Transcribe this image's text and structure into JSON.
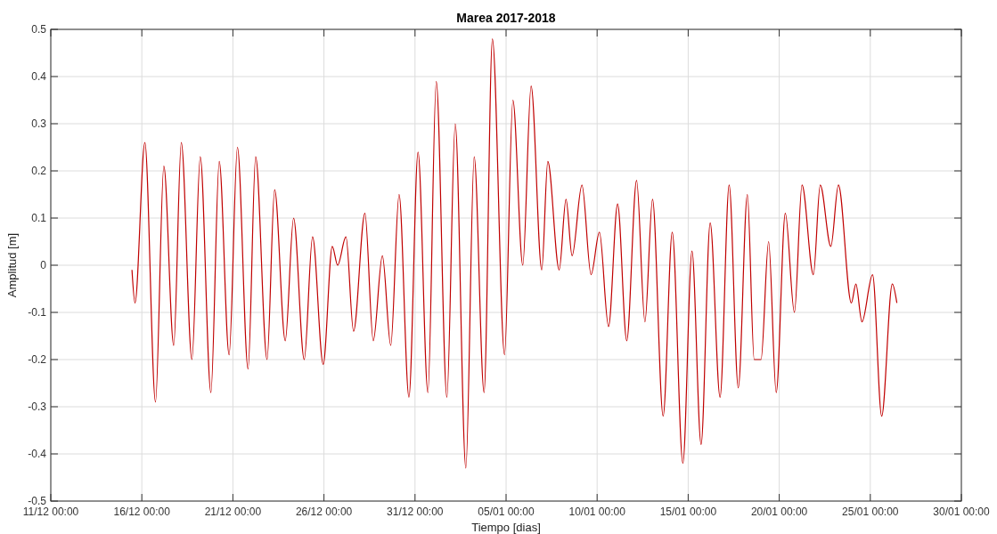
{
  "chart_data": {
    "type": "line",
    "title": "Marea 2017-2018",
    "xlabel": "Tiempo [dias]",
    "ylabel": "Amplitud [m]",
    "x": [
      "2017-12-15T11:00",
      "2017-12-15T15:00",
      "2017-12-16T04:00",
      "2017-12-16T18:00",
      "2017-12-17T05:00",
      "2017-12-17T18:00",
      "2017-12-18T04:00",
      "2017-12-18T18:00",
      "2017-12-19T05:00",
      "2017-12-19T19:00",
      "2017-12-20T06:00",
      "2017-12-20T19:00",
      "2017-12-21T06:00",
      "2017-12-21T20:00",
      "2017-12-22T06:00",
      "2017-12-22T21:00",
      "2017-12-23T07:00",
      "2017-12-23T21:00",
      "2017-12-24T08:00",
      "2017-12-24T22:00",
      "2017-12-25T09:00",
      "2017-12-25T23:00",
      "2017-12-26T11:00",
      "2017-12-26T18:00",
      "2017-12-27T05:00",
      "2017-12-27T15:00",
      "2017-12-28T06:00",
      "2017-12-28T17:00",
      "2017-12-29T05:00",
      "2017-12-29T16:00",
      "2017-12-30T03:00",
      "2017-12-30T16:00",
      "2017-12-31T04:00",
      "2017-12-31T17:00",
      "2018-01-01T04:00",
      "2018-01-01T18:00",
      "2018-01-02T05:00",
      "2018-01-02T19:00",
      "2018-01-03T06:00",
      "2018-01-03T19:00",
      "2018-01-04T06:00",
      "2018-01-04T22:00",
      "2018-01-05T09:00",
      "2018-01-05T22:00",
      "2018-01-06T09:00",
      "2018-01-06T23:00",
      "2018-01-07T07:00",
      "2018-01-07T22:00",
      "2018-01-08T07:00",
      "2018-01-08T15:00",
      "2018-01-09T04:00",
      "2018-01-09T16:00",
      "2018-01-10T03:00",
      "2018-01-10T15:00",
      "2018-01-11T03:00",
      "2018-01-11T15:00",
      "2018-01-12T04:00",
      "2018-01-12T15:00",
      "2018-01-13T01:00",
      "2018-01-13T15:00",
      "2018-01-14T03:00",
      "2018-01-14T17:00",
      "2018-01-15T05:00",
      "2018-01-15T17:00",
      "2018-01-16T05:00",
      "2018-01-16T18:00",
      "2018-01-17T06:00",
      "2018-01-17T18:00",
      "2018-01-18T06:00",
      "2018-01-18T15:00",
      "2018-01-19T00:00",
      "2018-01-19T10:00",
      "2018-01-19T20:00",
      "2018-01-20T08:00",
      "2018-01-20T20:00",
      "2018-01-21T06:00",
      "2018-01-21T21:00",
      "2018-01-22T06:00",
      "2018-01-22T20:00",
      "2018-01-23T06:00",
      "2018-01-23T23:00",
      "2018-01-24T05:00",
      "2018-01-24T13:00",
      "2018-01-25T03:00",
      "2018-01-25T15:00",
      "2018-01-26T05:00",
      "2018-01-26T11:00"
    ],
    "series": [
      {
        "color": "#c00000",
        "values": [
          -0.01,
          -0.08,
          0.26,
          -0.29,
          0.21,
          -0.17,
          0.26,
          -0.2,
          0.23,
          -0.27,
          0.22,
          -0.19,
          0.25,
          -0.22,
          0.23,
          -0.2,
          0.16,
          -0.16,
          0.1,
          -0.2,
          0.06,
          -0.21,
          0.04,
          0.0,
          0.06,
          -0.14,
          0.11,
          -0.16,
          0.02,
          -0.17,
          0.15,
          -0.28,
          0.24,
          -0.27,
          0.39,
          -0.28,
          0.3,
          -0.43,
          0.23,
          -0.27,
          0.48,
          -0.19,
          0.35,
          0.0,
          0.38,
          -0.01,
          0.22,
          -0.01,
          0.14,
          0.02,
          0.17,
          -0.02,
          0.07,
          -0.13,
          0.13,
          -0.16,
          0.18,
          -0.12,
          0.14,
          -0.32,
          0.07,
          -0.42,
          0.03,
          -0.38,
          0.09,
          -0.28,
          0.17,
          -0.26,
          0.15,
          -0.2,
          -0.2,
          0.05,
          -0.27,
          0.11,
          -0.1,
          0.17,
          -0.02,
          0.17,
          0.04,
          0.17,
          -0.08,
          -0.04,
          -0.12,
          -0.02,
          -0.32,
          -0.04,
          -0.08
        ]
      }
    ],
    "xlim": [
      "2017-12-11T00:00",
      "2018-01-30T00:00"
    ],
    "xticks": [
      {
        "value": "2017-12-11T00:00",
        "label": "11/12 00:00"
      },
      {
        "value": "2017-12-16T00:00",
        "label": "16/12 00:00"
      },
      {
        "value": "2017-12-21T00:00",
        "label": "21/12 00:00"
      },
      {
        "value": "2017-12-26T00:00",
        "label": "26/12 00:00"
      },
      {
        "value": "2017-12-31T00:00",
        "label": "31/12 00:00"
      },
      {
        "value": "2018-01-05T00:00",
        "label": "05/01 00:00"
      },
      {
        "value": "2018-01-10T00:00",
        "label": "10/01 00:00"
      },
      {
        "value": "2018-01-15T00:00",
        "label": "15/01 00:00"
      },
      {
        "value": "2018-01-20T00:00",
        "label": "20/01 00:00"
      },
      {
        "value": "2018-01-25T00:00",
        "label": "25/01 00:00"
      },
      {
        "value": "2018-01-30T00:00",
        "label": "30/01 00:00"
      }
    ],
    "ylim": [
      -0.5,
      0.5
    ],
    "yticks": [
      -0.5,
      -0.4,
      -0.3,
      -0.2,
      -0.1,
      0,
      0.1,
      0.2,
      0.3,
      0.4,
      0.5
    ],
    "grid": true,
    "line_style": "solid",
    "marker": "none"
  }
}
